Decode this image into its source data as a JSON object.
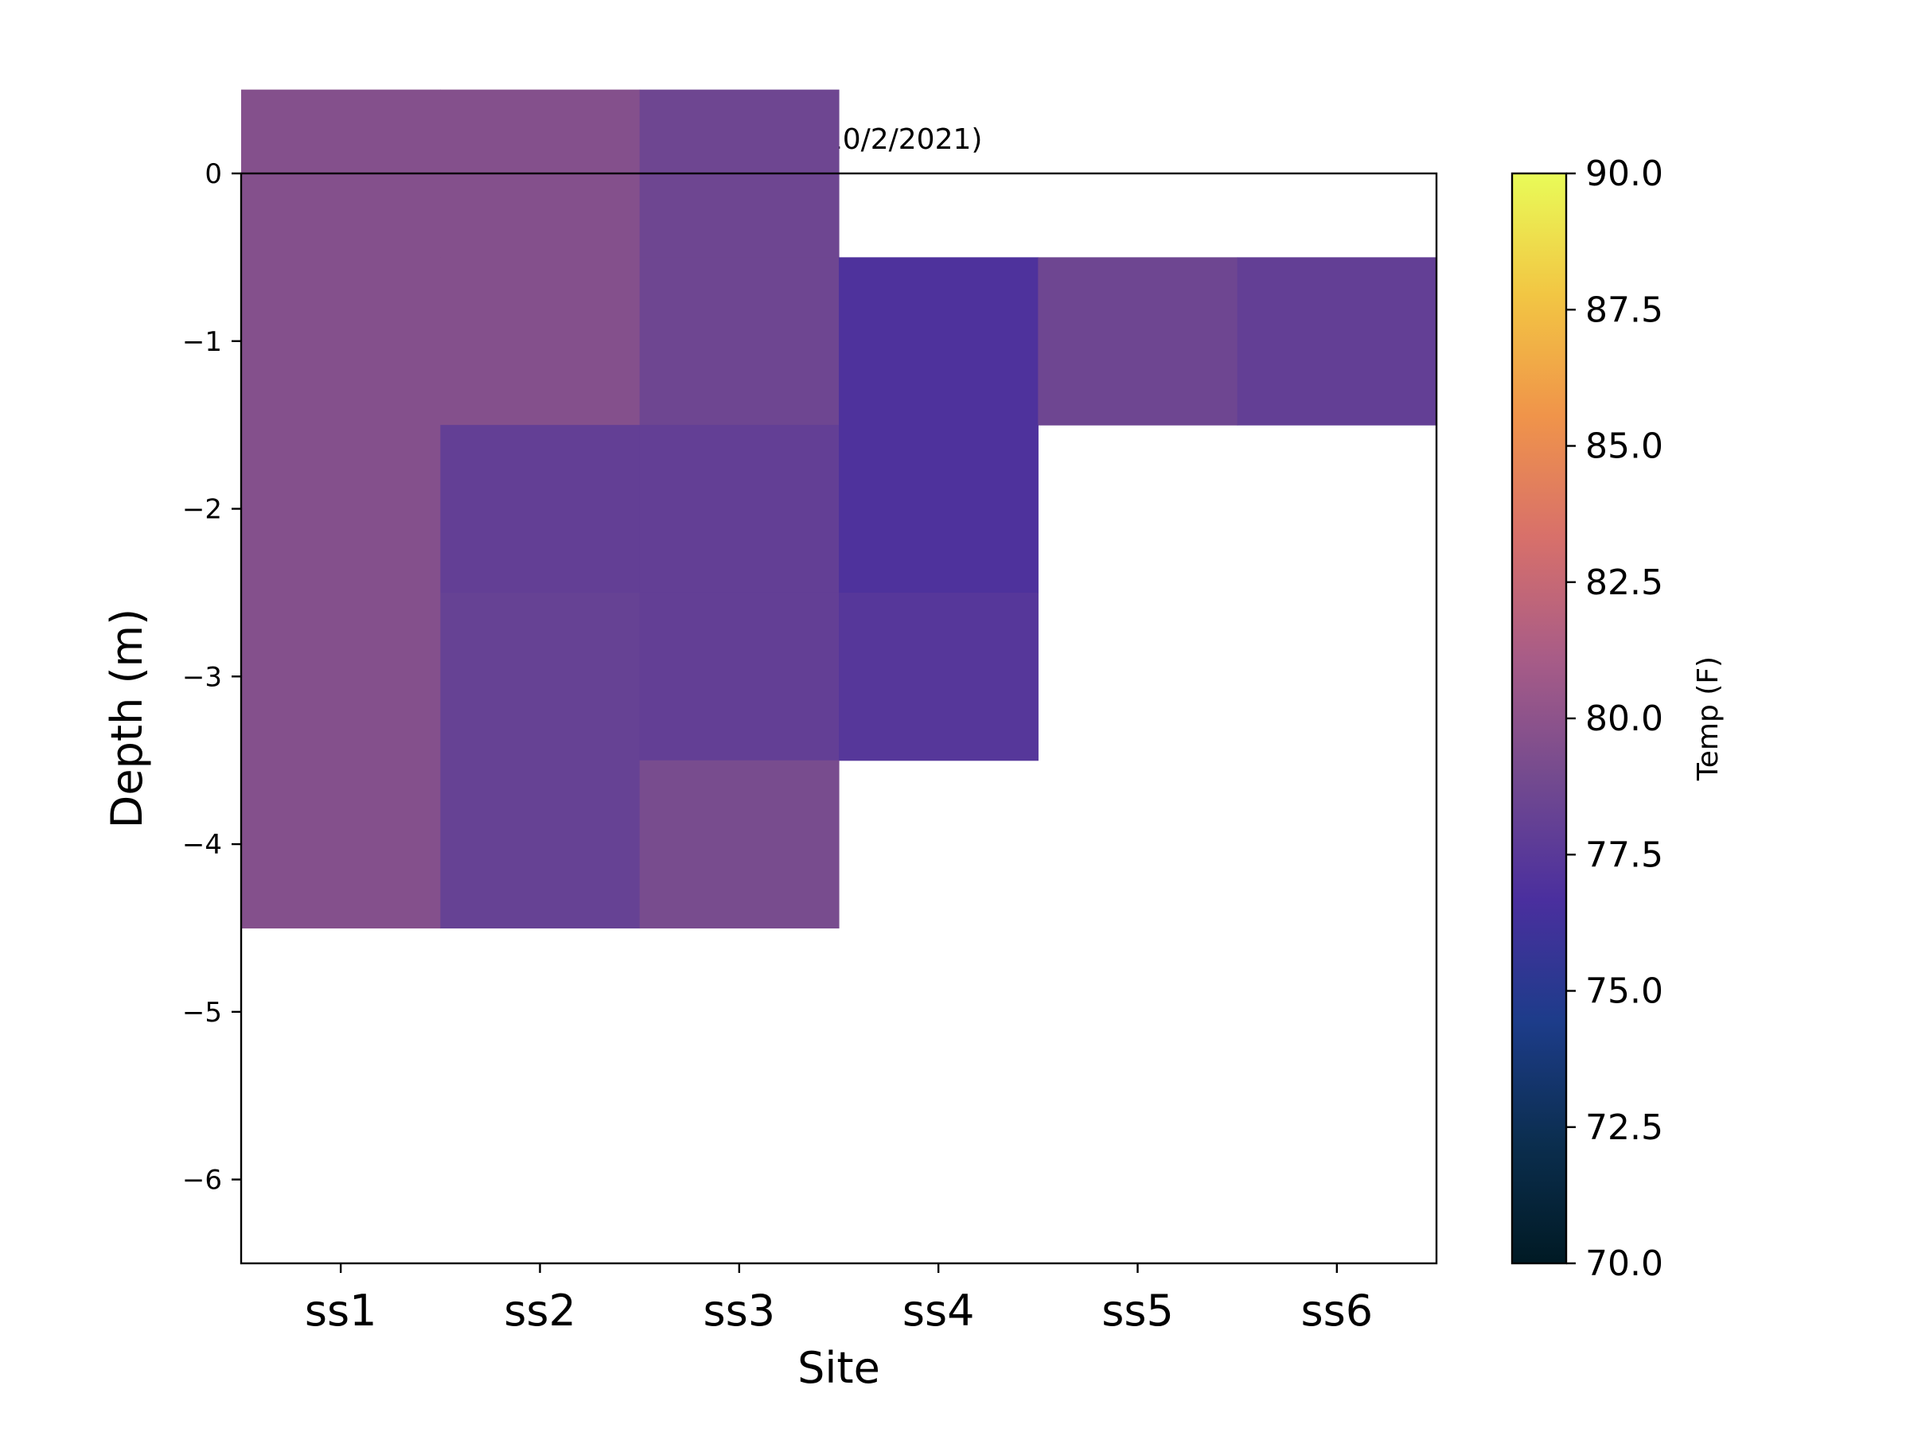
{
  "chart_data": {
    "type": "heatmap",
    "title": "Temp (F)(10/2/2021)",
    "xlabel": "Site",
    "ylabel": "Depth (m)",
    "categories": [
      "ss1",
      "ss2",
      "ss3",
      "ss4",
      "ss5",
      "ss6"
    ],
    "depths": [
      0,
      -1,
      -2,
      -3,
      -4
    ],
    "ylim": [
      -6.5,
      0
    ],
    "yticks": [
      0,
      -1,
      -2,
      -3,
      -4,
      -5,
      -6
    ],
    "ytick_labels": [
      "0",
      "−1",
      "−2",
      "−3",
      "−4",
      "−5",
      "−6"
    ],
    "values": [
      [
        79.6,
        79.6,
        78.6,
        null,
        null,
        null
      ],
      [
        79.6,
        79.6,
        78.6,
        76.9,
        78.6,
        78.0
      ],
      [
        79.6,
        78.0,
        78.0,
        76.9,
        null,
        null
      ],
      [
        79.6,
        78.2,
        78.0,
        77.3,
        null,
        null
      ],
      [
        79.6,
        78.2,
        79.1,
        null,
        null,
        null
      ]
    ],
    "colorbar": {
      "label": "Temp (F)",
      "vmin": 70.0,
      "vmax": 90.0,
      "ticks": [
        70.0,
        72.5,
        75.0,
        77.5,
        80.0,
        82.5,
        85.0,
        87.5,
        90.0
      ],
      "tick_labels": [
        "70.0",
        "72.5",
        "75.0",
        "77.5",
        "80.0",
        "82.5",
        "85.0",
        "87.5",
        "90.0"
      ],
      "colormap": [
        "#001a24",
        "#0b2e4f",
        "#1d3c8a",
        "#4a2f9e",
        "#734a8f",
        "#a85c87",
        "#d8706a",
        "#f0944a",
        "#f2c643",
        "#e9fb58"
      ]
    },
    "grid": false,
    "legend": "none"
  }
}
